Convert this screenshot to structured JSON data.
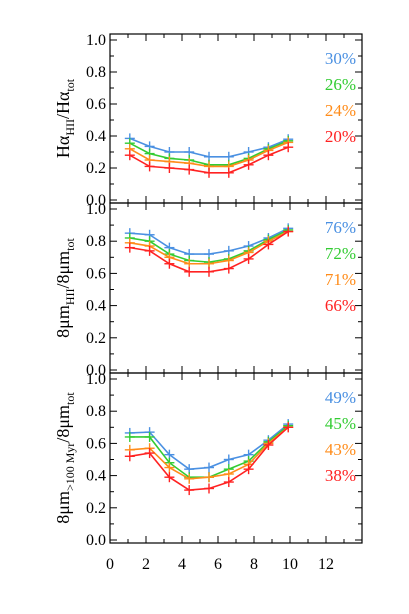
{
  "chart_data": [
    {
      "type": "line",
      "ylabel": {
        "base": "Hα",
        "sub": "HII",
        "sep": "/Hα",
        "sub2": "tot"
      },
      "ylim": [
        0.0,
        1.0
      ],
      "yticks": [
        "0.0",
        "0.2",
        "0.4",
        "0.6",
        "0.8",
        "1.0"
      ],
      "x": [
        1.1,
        2.2,
        3.3,
        4.4,
        5.5,
        6.6,
        7.7,
        8.8,
        9.9
      ],
      "series": [
        {
          "name": "30%",
          "color": "#4a90e2",
          "values": [
            0.385,
            0.335,
            0.3,
            0.3,
            0.27,
            0.27,
            0.3,
            0.33,
            0.38
          ]
        },
        {
          "name": "26%",
          "color": "#33cc33",
          "values": [
            0.355,
            0.29,
            0.26,
            0.25,
            0.22,
            0.22,
            0.26,
            0.32,
            0.37
          ]
        },
        {
          "name": "24%",
          "color": "#ff8c1a",
          "values": [
            0.32,
            0.25,
            0.24,
            0.23,
            0.21,
            0.21,
            0.25,
            0.31,
            0.36
          ]
        },
        {
          "name": "20%",
          "color": "#ff2222",
          "values": [
            0.28,
            0.21,
            0.2,
            0.19,
            0.17,
            0.17,
            0.22,
            0.28,
            0.33
          ]
        }
      ]
    },
    {
      "type": "line",
      "ylabel": {
        "base": "8μm",
        "sub": "HII",
        "sep": "/8μm",
        "sub2": "tot"
      },
      "ylim": [
        0.0,
        1.0
      ],
      "yticks": [
        "0.0",
        "0.2",
        "0.4",
        "0.6",
        "0.8",
        "1.0"
      ],
      "x": [
        1.1,
        2.2,
        3.3,
        4.4,
        5.5,
        6.6,
        7.7,
        8.8,
        9.9
      ],
      "series": [
        {
          "name": "76%",
          "color": "#4a90e2",
          "values": [
            0.85,
            0.84,
            0.76,
            0.72,
            0.72,
            0.74,
            0.77,
            0.82,
            0.88
          ]
        },
        {
          "name": "72%",
          "color": "#33cc33",
          "values": [
            0.82,
            0.8,
            0.72,
            0.68,
            0.67,
            0.69,
            0.74,
            0.81,
            0.87
          ]
        },
        {
          "name": "71%",
          "color": "#ff8c1a",
          "values": [
            0.79,
            0.77,
            0.7,
            0.66,
            0.66,
            0.68,
            0.73,
            0.8,
            0.86
          ]
        },
        {
          "name": "66%",
          "color": "#ff2222",
          "values": [
            0.76,
            0.74,
            0.66,
            0.61,
            0.61,
            0.63,
            0.69,
            0.78,
            0.86
          ]
        }
      ]
    },
    {
      "type": "line",
      "ylabel": {
        "base": "8μm",
        "sub": ">100 Myr",
        "sep": "/8μm",
        "sub2": "tot"
      },
      "ylim": [
        0.0,
        1.0
      ],
      "yticks": [
        "0.0",
        "0.2",
        "0.4",
        "0.6",
        "0.8",
        "1.0"
      ],
      "x": [
        1.1,
        2.2,
        3.3,
        4.4,
        5.5,
        6.6,
        7.7,
        8.8,
        9.9
      ],
      "xticks": [
        "0",
        "2",
        "4",
        "6",
        "8",
        "10",
        "12"
      ],
      "xlim": [
        0,
        14
      ],
      "series": [
        {
          "name": "49%",
          "color": "#4a90e2",
          "values": [
            0.665,
            0.67,
            0.53,
            0.44,
            0.45,
            0.5,
            0.53,
            0.62,
            0.72
          ]
        },
        {
          "name": "45%",
          "color": "#33cc33",
          "values": [
            0.64,
            0.64,
            0.48,
            0.39,
            0.39,
            0.44,
            0.49,
            0.61,
            0.71
          ]
        },
        {
          "name": "43%",
          "color": "#ff8c1a",
          "values": [
            0.56,
            0.57,
            0.45,
            0.38,
            0.39,
            0.41,
            0.47,
            0.6,
            0.7
          ]
        },
        {
          "name": "38%",
          "color": "#ff2222",
          "values": [
            0.52,
            0.54,
            0.39,
            0.31,
            0.32,
            0.36,
            0.44,
            0.59,
            0.7
          ]
        }
      ]
    }
  ]
}
